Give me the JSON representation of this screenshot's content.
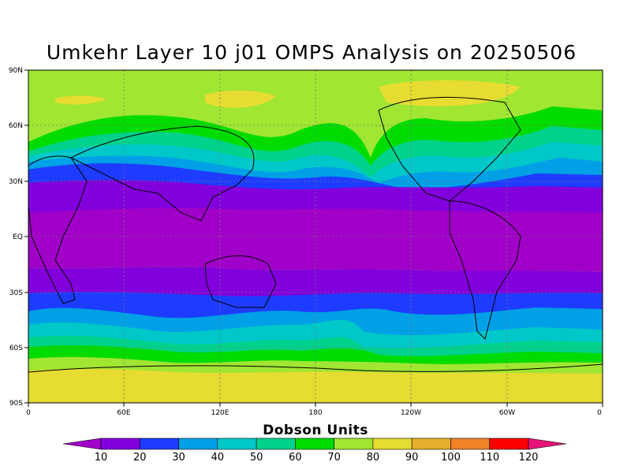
{
  "title": "Umkehr Layer 10 j01 OMPS Analysis on 20250506",
  "lat_labels": [
    "90N",
    "60N",
    "30N",
    "EQ",
    "30S",
    "60S",
    "90S"
  ],
  "lon_labels": [
    "0",
    "60E",
    "120E",
    "180",
    "120W",
    "60W",
    "0"
  ],
  "colorbar": {
    "title": "Dobson Units",
    "ticks": [
      "10",
      "20",
      "30",
      "40",
      "50",
      "60",
      "70",
      "80",
      "90",
      "100",
      "110",
      "120"
    ],
    "colors": [
      "#a000c8",
      "#8200dc",
      "#1e3cff",
      "#00a0e6",
      "#00c8c8",
      "#00d28c",
      "#00dc00",
      "#a0e632",
      "#e6dc32",
      "#e6af2d",
      "#f08228",
      "#fa0000",
      "#e6147a"
    ]
  }
}
